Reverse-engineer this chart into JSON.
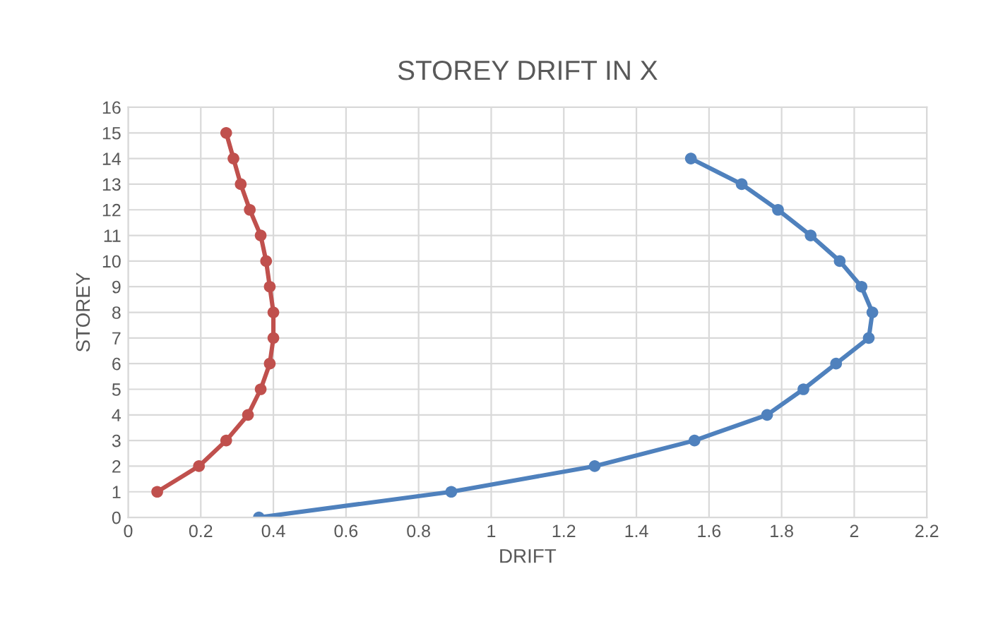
{
  "chart_data": {
    "type": "line",
    "title": "STOREY DRIFT IN X",
    "xlabel": "DRIFT",
    "ylabel": "STOREY",
    "series": [
      {
        "color": "#c0504d",
        "x": [
          0.08,
          0.195,
          0.27,
          0.33,
          0.365,
          0.39,
          0.4,
          0.4,
          0.39,
          0.38,
          0.365,
          0.335,
          0.31,
          0.29,
          0.27
        ],
        "values": [
          1,
          2,
          3,
          4,
          5,
          6,
          7,
          8,
          9,
          10,
          11,
          12,
          13,
          14,
          15
        ]
      },
      {
        "color": "#4f81bd",
        "x": [
          0.36,
          0.89,
          1.285,
          1.56,
          1.76,
          1.86,
          1.95,
          2.04,
          2.05,
          2.02,
          1.96,
          1.88,
          1.79,
          1.69,
          1.55
        ],
        "values": [
          0,
          1,
          2,
          3,
          4,
          5,
          6,
          7,
          8,
          9,
          10,
          11,
          12,
          13,
          14
        ]
      }
    ],
    "xlim": [
      0,
      2.2
    ],
    "xticks": [
      0,
      0.2,
      0.4,
      0.6,
      0.8,
      1,
      1.2,
      1.4,
      1.6,
      1.8,
      2,
      2.2
    ],
    "ylim": [
      0,
      16
    ],
    "yticks": [
      0,
      1,
      2,
      3,
      4,
      5,
      6,
      7,
      8,
      9,
      10,
      11,
      12,
      13,
      14,
      15,
      16
    ],
    "grid": true,
    "marker": "circle",
    "line_style": "solid"
  }
}
